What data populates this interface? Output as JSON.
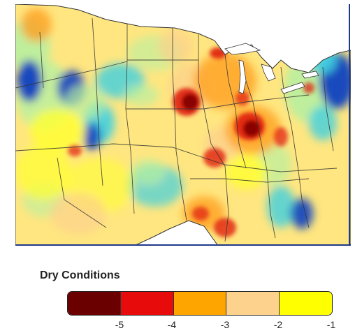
{
  "legend": {
    "title": "Dry Conditions",
    "segments": [
      {
        "color": "#6b0000"
      },
      {
        "color": "#e80b0b"
      },
      {
        "color": "#ffa500"
      },
      {
        "color": "#fcd28c"
      },
      {
        "color": "#ffff00"
      }
    ],
    "ticks": [
      "-5",
      "-4",
      "-3",
      "-2",
      "-1"
    ]
  },
  "map": {
    "palette": {
      "land_base": "#ffe680",
      "extreme": "#7a0000",
      "severe": "#e02010",
      "moderate": "#ffa020",
      "mild": "#fcd28c",
      "abnormal": "#ffff30",
      "moist_light": "#b8f0a0",
      "moist_mid": "#40d0e0",
      "moist_dark": "#1040c0",
      "border": "#1e3a8a"
    }
  }
}
